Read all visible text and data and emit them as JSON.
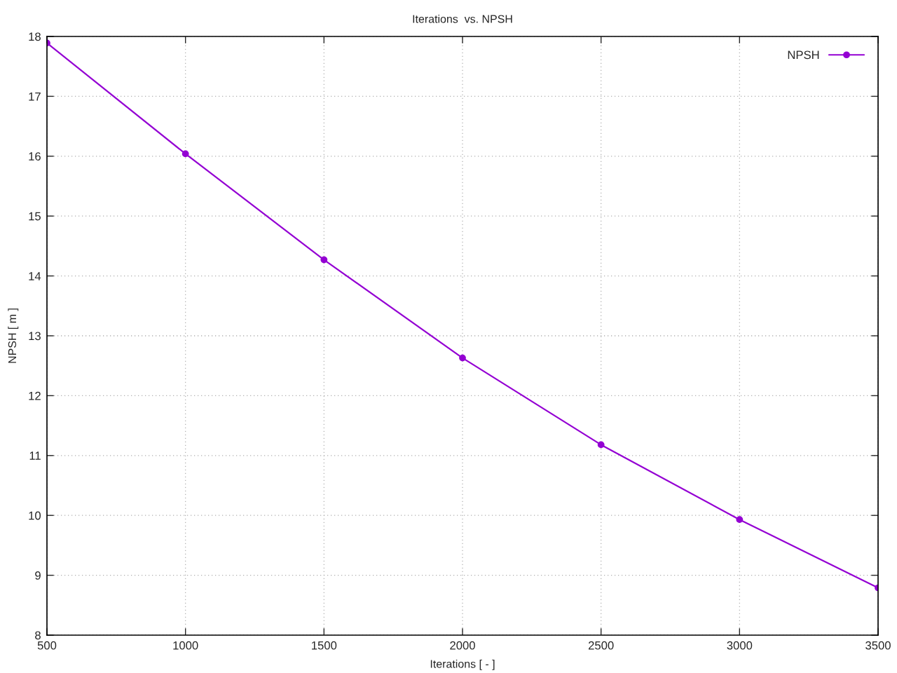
{
  "chart_data": {
    "type": "line",
    "title": "Iterations  vs. NPSH",
    "xlabel": "Iterations [ - ]",
    "ylabel": "NPSH [ m ]",
    "x": [
      500,
      1000,
      1500,
      2000,
      2500,
      3000,
      3500
    ],
    "series": [
      {
        "name": "NPSH",
        "color": "#9400d3",
        "values": [
          17.89,
          16.04,
          14.27,
          12.63,
          11.18,
          9.93,
          8.79
        ]
      }
    ],
    "xlim": [
      500,
      3500
    ],
    "xticks": [
      500,
      1000,
      1500,
      2000,
      2500,
      3000,
      3500
    ],
    "ylim": [
      8,
      18
    ],
    "yticks": [
      8,
      9,
      10,
      11,
      12,
      13,
      14,
      15,
      16,
      17,
      18
    ],
    "grid": true,
    "legend": "top right",
    "marker": "circle",
    "line_style": "solid"
  }
}
